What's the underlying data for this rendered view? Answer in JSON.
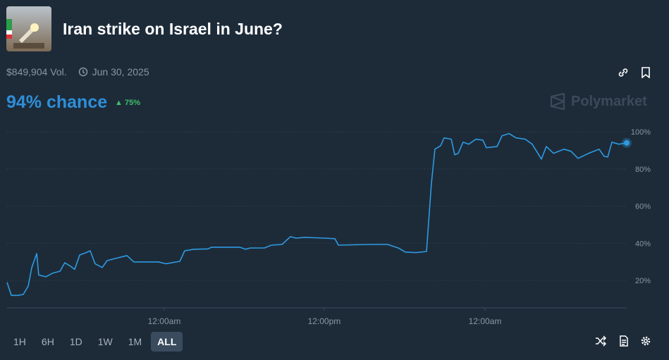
{
  "header": {
    "title": "Iran strike on Israel in June?",
    "volume": "$849,904 Vol.",
    "end_date": "Jun 30, 2025",
    "chance": "94% chance",
    "change": "75%",
    "brand": "Polymarket"
  },
  "ranges": [
    "1H",
    "6H",
    "1D",
    "1W",
    "1M",
    "ALL"
  ],
  "chart_data": {
    "type": "line",
    "color": "#2e9ae0",
    "grid": true,
    "x": [
      0,
      0.32,
      0.79,
      1.21,
      1.58,
      1.85,
      2.22,
      2.37,
      2.9,
      3.43,
      3.96,
      4.32,
      4.75,
      5.06,
      5.43,
      5.91,
      6.22,
      6.59,
      7.12,
      7.49,
      8.18,
      8.97,
      9.49,
      11.34,
      11.87,
      12.92,
      13.29,
      13.98,
      15.03,
      15.3,
      17.41,
      17.83,
      18.2,
      19.25,
      19.78,
      20.57,
      21.2,
      21.62,
      22.26,
      23.73,
      24.53,
      24.79,
      27.16,
      28.48,
      29.27,
      29.8,
      30.59,
      31.38,
      31.75,
      32.01,
      32.44,
      32.7,
      33.23,
      33.49,
      33.76,
      34.12,
      34.55,
      35.07,
      35.6,
      35.86,
      36.66,
      37.03,
      37.55,
      38.08,
      38.77,
      39.29,
      39.98,
      40.35,
      40.88,
      41.67,
      42.19,
      42.72,
      43.51,
      44.3,
      44.67,
      44.94,
      45.25,
      45.78,
      46.36
    ],
    "y": [
      19,
      12,
      12,
      12.5,
      17,
      27,
      34.5,
      23,
      22,
      24,
      25,
      29.6,
      27.7,
      26,
      33.7,
      35,
      36,
      29,
      27,
      30.7,
      32,
      33.4,
      30,
      30,
      29,
      30.3,
      36,
      36.8,
      37,
      37.9,
      37.9,
      36.8,
      37.5,
      37.5,
      39,
      39.4,
      43.6,
      42.8,
      43.2,
      42.8,
      42.5,
      39,
      39.4,
      39.4,
      37.5,
      35.3,
      35,
      35.6,
      72.4,
      90.6,
      92.5,
      96.7,
      96,
      87.6,
      88.4,
      94.4,
      93.3,
      96,
      95.5,
      91.4,
      92.1,
      97.8,
      99,
      96.7,
      96,
      93.3,
      85.3,
      92.1,
      88.4,
      90.6,
      89.5,
      85.7,
      88.4,
      90.6,
      86.8,
      86.4,
      94.4,
      93.3,
      94
    ],
    "xlim": [
      0,
      46.36
    ],
    "xticks": [
      {
        "value": 11.76,
        "label": "12:00am"
      },
      {
        "value": 23.73,
        "label": "12:00pm"
      },
      {
        "value": 35.76,
        "label": "12:00am"
      }
    ],
    "ylim": [
      5.3,
      100
    ],
    "yticks": [
      {
        "value": 20,
        "label": "20%"
      },
      {
        "value": 40,
        "label": "40%"
      },
      {
        "value": 60,
        "label": "60%"
      },
      {
        "value": 80,
        "label": "80%"
      },
      {
        "value": 100,
        "label": "100%"
      }
    ]
  }
}
